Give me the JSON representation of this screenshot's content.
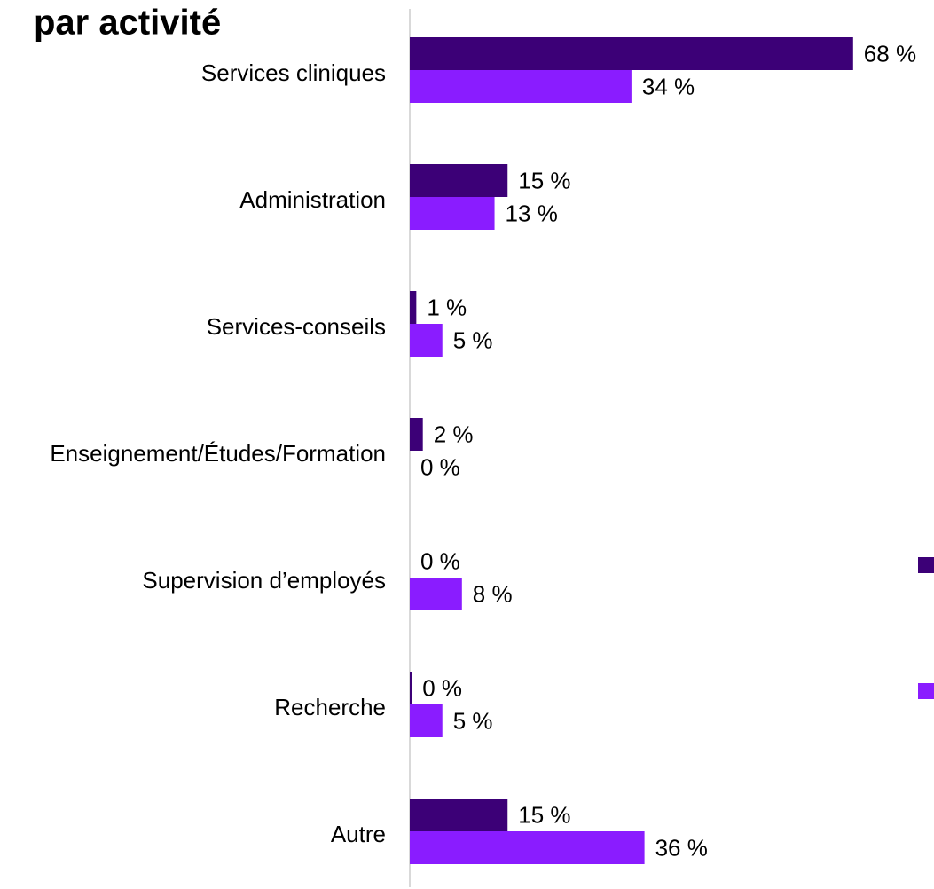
{
  "chart_data": {
    "type": "bar",
    "orientation": "horizontal",
    "title": "par activité",
    "categories": [
      "Services cliniques",
      "Administration",
      "Services-conseils",
      "Enseignement/Études/Formation",
      "Supervision d’employés",
      "Recherche",
      "Autre"
    ],
    "series": [
      {
        "color": "#3c0077",
        "values": [
          68,
          15,
          1,
          2,
          0,
          0.3,
          15
        ],
        "value_labels": [
          "68 %",
          "15 %",
          "1 %",
          "2 %",
          "0 %",
          "0 %",
          "15 %"
        ]
      },
      {
        "color": "#8a1cff",
        "values": [
          34,
          13,
          5,
          0,
          8,
          5,
          36
        ],
        "value_labels": [
          "34 %",
          "13 %",
          "5 %",
          "0 %",
          "8 %",
          "5 %",
          "36 %"
        ]
      }
    ]
  }
}
